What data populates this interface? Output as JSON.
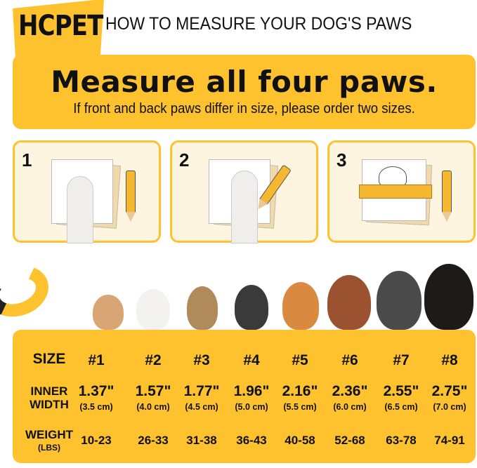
{
  "brand": {
    "logo_text": "HCPET",
    "accent_color": "#FDC22E"
  },
  "heading": "HOW TO MEASURE YOUR DOG'S PAWS",
  "banner": {
    "title": "Measure all four paws.",
    "subtitle": "If front and back paws differ in size, please order two sizes."
  },
  "steps": [
    {
      "number": "1"
    },
    {
      "number": "2"
    },
    {
      "number": "3"
    }
  ],
  "size_chart": {
    "labels": {
      "size": "SIZE",
      "inner_width_1": "INNER",
      "inner_width_2": "WIDTH",
      "weight_1": "WEIGHT",
      "weight_2": "(LBS)"
    },
    "sizes": [
      {
        "size": "#1",
        "inch": "1.37\"",
        "cm": "(3.5 cm)",
        "weight": "10-23"
      },
      {
        "size": "#2",
        "inch": "1.57\"",
        "cm": "(4.0 cm)",
        "weight": "26-33"
      },
      {
        "size": "#3",
        "inch": "1.77\"",
        "cm": "(4.5 cm)",
        "weight": "31-38"
      },
      {
        "size": "#4",
        "inch": "1.96\"",
        "cm": "(5.0 cm)",
        "weight": "36-43"
      },
      {
        "size": "#5",
        "inch": "2.16\"",
        "cm": "(5.5 cm)",
        "weight": "40-58"
      },
      {
        "size": "#6",
        "inch": "2.36\"",
        "cm": "(6.0 cm)",
        "weight": "52-68"
      },
      {
        "size": "#7",
        "inch": "2.55\"",
        "cm": "(6.5 cm)",
        "weight": "63-78"
      },
      {
        "size": "#8",
        "inch": "2.75\"",
        "cm": "(7.0 cm)",
        "weight": "74-91"
      }
    ]
  }
}
